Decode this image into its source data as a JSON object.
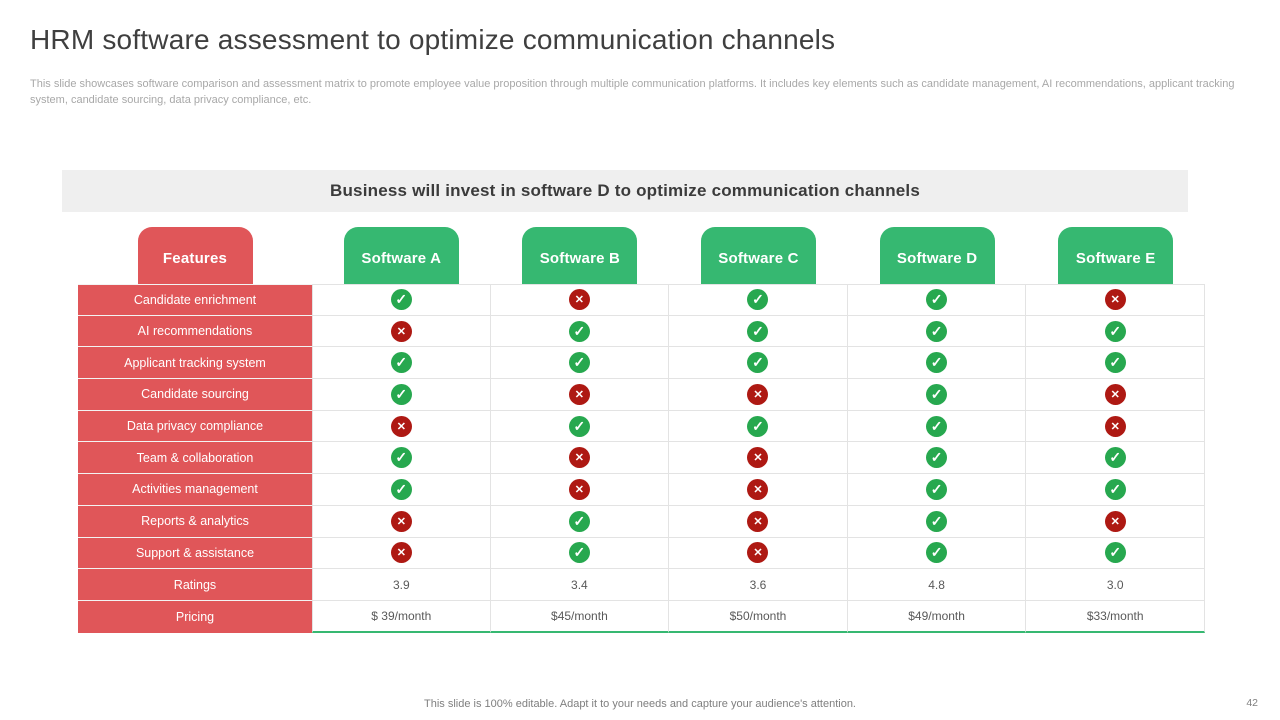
{
  "header": {
    "title": "HRM software assessment to optimize communication channels",
    "subtitle": "This slide showcases software comparison and assessment matrix to promote employee value proposition through multiple communication platforms. It includes key elements such as candidate management, AI recommendations, applicant tracking system, candidate sourcing, data privacy compliance, etc."
  },
  "banner": {
    "text": "Business will invest in software D to optimize communication channels"
  },
  "table": {
    "feature_header": "Features",
    "columns": [
      "Software A",
      "Software B",
      "Software C",
      "Software D",
      "Software E"
    ],
    "rows": [
      {
        "label": "Candidate enrichment",
        "values": [
          "check",
          "cross",
          "check",
          "check",
          "cross"
        ]
      },
      {
        "label": "AI recommendations",
        "values": [
          "cross",
          "check",
          "check",
          "check",
          "check"
        ]
      },
      {
        "label": "Applicant tracking system",
        "values": [
          "check",
          "check",
          "check",
          "check",
          "check"
        ]
      },
      {
        "label": "Candidate sourcing",
        "values": [
          "check",
          "cross",
          "cross",
          "check",
          "cross"
        ]
      },
      {
        "label": "Data privacy compliance",
        "values": [
          "cross",
          "check",
          "check",
          "check",
          "cross"
        ]
      },
      {
        "label": "Team & collaboration",
        "values": [
          "check",
          "cross",
          "cross",
          "check",
          "check"
        ]
      },
      {
        "label": "Activities management",
        "values": [
          "check",
          "cross",
          "cross",
          "check",
          "check"
        ]
      },
      {
        "label": "Reports & analytics",
        "values": [
          "cross",
          "check",
          "cross",
          "check",
          "cross"
        ]
      },
      {
        "label": "Support & assistance",
        "values": [
          "cross",
          "check",
          "cross",
          "check",
          "check"
        ]
      },
      {
        "label": "Ratings",
        "values": [
          "3.9",
          "3.4",
          "3.6",
          "4.8",
          "3.0"
        ]
      },
      {
        "label": "Pricing",
        "values": [
          "$ 39/month",
          "$45/month",
          "$50/month",
          "$49/month",
          "$33/month"
        ]
      }
    ],
    "icon_legend": {
      "check": "check-icon",
      "cross": "cross-icon"
    }
  },
  "footer": {
    "note": "This slide is 100% editable. Adapt it to your needs and capture your audience's attention.",
    "page_number": "42"
  },
  "colors": {
    "feature_red": "#E05659",
    "tab_green": "#36B871",
    "check_green": "#27A84F",
    "cross_red": "#AE1913",
    "banner_bg": "#EFEFEF",
    "title_text": "#3F3F3F",
    "subtitle_text": "#A8A8A8",
    "cell_text": "#595959"
  }
}
